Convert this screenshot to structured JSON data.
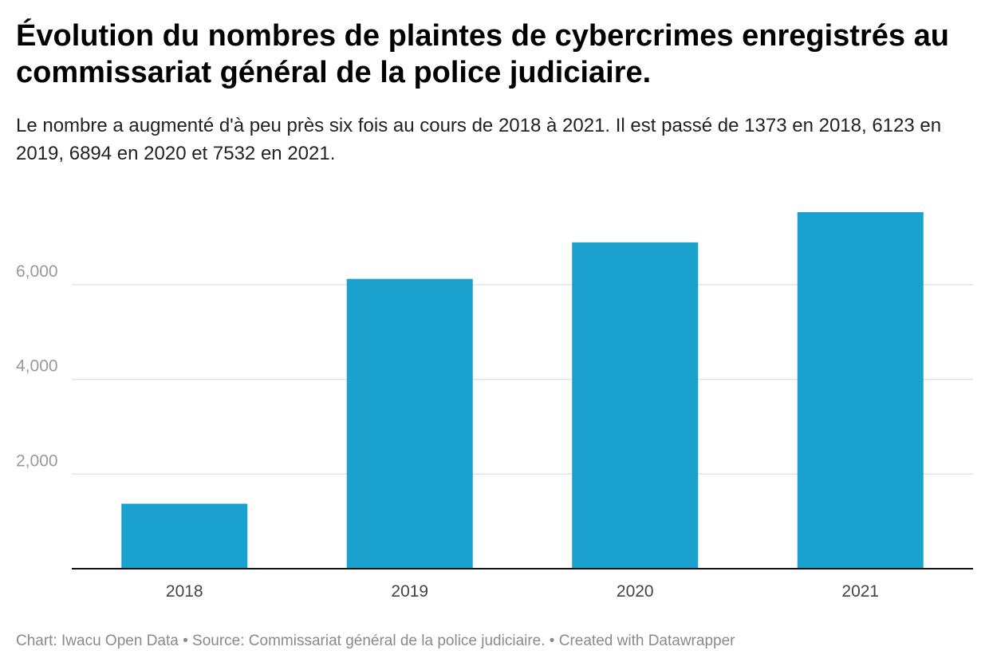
{
  "header": {
    "title": "Évolution du nombres de plaintes de cybercrimes enregistrés au commissariat général de la police judiciaire.",
    "subtitle": "Le nombre a augmenté d'à peu près six fois au cours de 2018 à 2021. Il est passé de 1373 en 2018, 6123 en 2019, 6894 en 2020 et 7532 en 2021."
  },
  "footer": {
    "chart_credit": "Chart: Iwacu Open Data",
    "separator_1": " • ",
    "source": "Source: Commissariat général de la police judiciaire.",
    "separator_2": " • ",
    "created_with": "Created with Datawrapper"
  },
  "chart_data": {
    "type": "bar",
    "categories": [
      "2018",
      "2019",
      "2020",
      "2021"
    ],
    "values": [
      1373,
      6123,
      6894,
      7532
    ],
    "title": "Évolution du nombres de plaintes de cybercrimes enregistrés au commissariat général de la police judiciaire.",
    "xlabel": "",
    "ylabel": "",
    "ylim": [
      0,
      7532
    ],
    "yticks": [
      2000,
      4000,
      6000
    ],
    "ytick_labels": [
      "2,000",
      "4,000",
      "6,000"
    ],
    "grid": true,
    "legend": "none",
    "bar_color": "#1ba1cd",
    "grid_color": "#e3e3e3",
    "axis_color": "#111111"
  }
}
